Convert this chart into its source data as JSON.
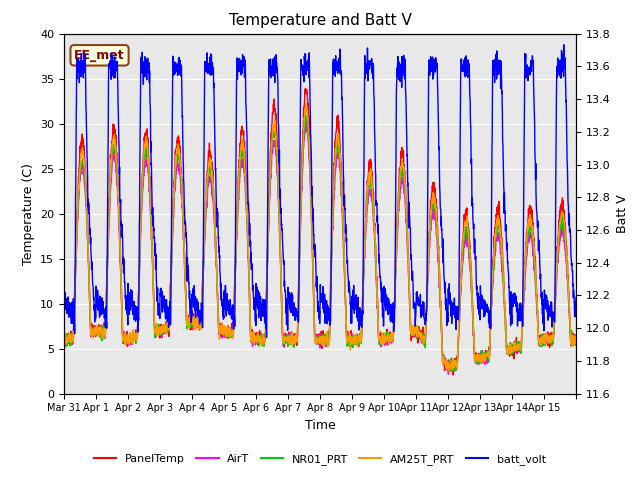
{
  "title": "Temperature and Batt V",
  "xlabel": "Time",
  "ylabel_left": "Temperature (C)",
  "ylabel_right": "Batt V",
  "annotation": "EE_met",
  "ylim_left": [
    0,
    40
  ],
  "ylim_right": [
    11.6,
    13.8
  ],
  "yticks_left": [
    0,
    5,
    10,
    15,
    20,
    25,
    30,
    35,
    40
  ],
  "yticks_right": [
    11.6,
    11.8,
    12.0,
    12.2,
    12.4,
    12.6,
    12.8,
    13.0,
    13.2,
    13.4,
    13.6,
    13.8
  ],
  "xtick_positions": [
    0,
    1,
    2,
    3,
    4,
    5,
    6,
    7,
    8,
    9,
    10,
    11,
    12,
    13,
    14,
    15,
    16
  ],
  "xtick_labels": [
    "Mar 31",
    "Apr 1",
    "Apr 2",
    "Apr 3",
    "Apr 4",
    "Apr 5",
    "Apr 6",
    "Apr 7",
    "Apr 8",
    "Apr 9",
    "Apr 10",
    "Apr 11",
    "Apr 12",
    "Apr 13",
    "Apr 14",
    "Apr 15",
    ""
  ],
  "bg_color": "#e8e8e8",
  "series_colors": {
    "PanelTemp": "#ff0000",
    "AirT": "#ff00ff",
    "NR01_PRT": "#00cc00",
    "AM25T_PRT": "#ff9900",
    "batt_volt": "#0000ff"
  },
  "legend_entries": [
    "PanelTemp",
    "AirT",
    "NR01_PRT",
    "AM25T_PRT",
    "batt_volt"
  ],
  "n_days": 16
}
